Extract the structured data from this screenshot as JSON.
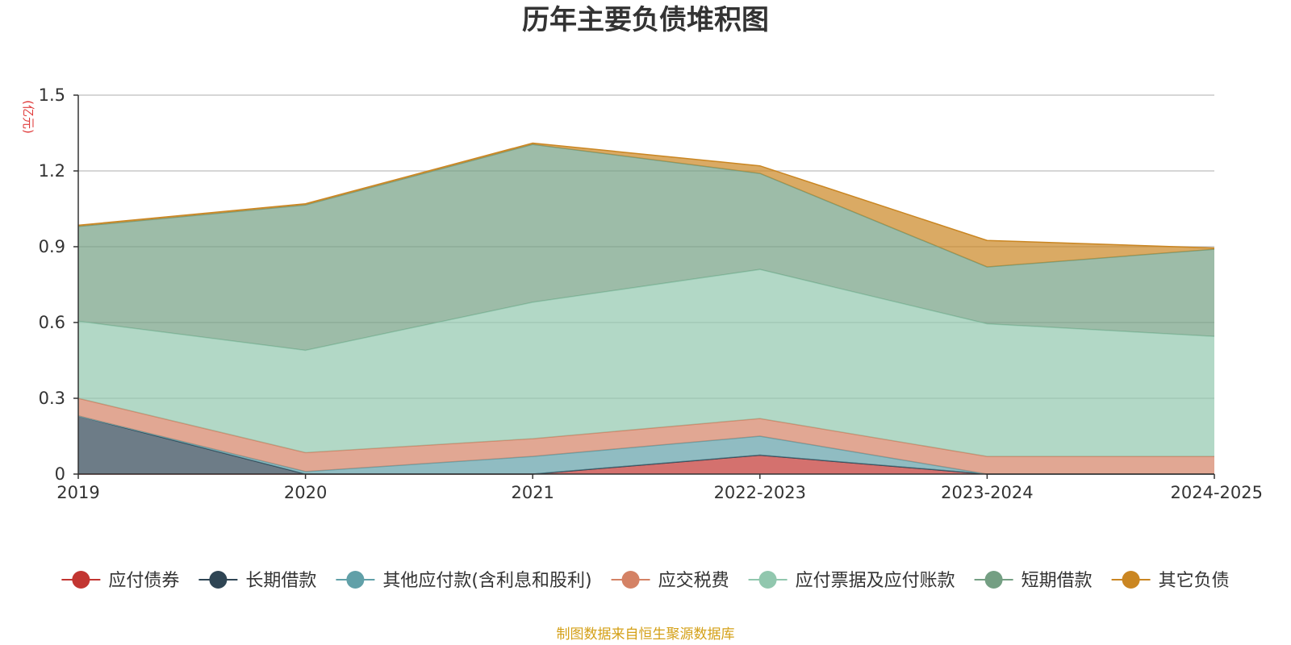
{
  "chart_data": {
    "type": "area",
    "stacked": true,
    "title": "历年主要负债堆积图",
    "unit_label": "(亿元)",
    "categories": [
      "2019",
      "2020",
      "2021",
      "2022-2023",
      "2023-2024",
      "2024-2025"
    ],
    "ylim": [
      0,
      1.5
    ],
    "yticks": [
      0,
      0.3,
      0.6,
      0.9,
      1.2,
      1.5
    ],
    "ytick_labels": [
      "0",
      "0.3",
      "0.6",
      "0.9",
      "1.2",
      "1.5"
    ],
    "grid": true,
    "legend_position": "bottom",
    "series": [
      {
        "name": "应付债券",
        "color": "#c23531",
        "values": [
          0,
          0,
          0,
          0.075,
          0,
          0
        ]
      },
      {
        "name": "长期借款",
        "color": "#2f4554",
        "values": [
          0.23,
          0,
          0,
          0,
          0,
          0
        ]
      },
      {
        "name": "其他应付款(含利息和股利)",
        "color": "#61a0a8",
        "values": [
          0,
          0.01,
          0.07,
          0.075,
          0,
          0
        ]
      },
      {
        "name": "应交税费",
        "color": "#d48265",
        "values": [
          0.07,
          0.075,
          0.07,
          0.07,
          0.07,
          0.07
        ]
      },
      {
        "name": "应付票据及应付账款",
        "color": "#91c7ae",
        "values": [
          0.305,
          0.405,
          0.54,
          0.59,
          0.525,
          0.475
        ]
      },
      {
        "name": "短期借款",
        "color": "#749f83",
        "values": [
          0.375,
          0.575,
          0.625,
          0.38,
          0.225,
          0.345
        ]
      },
      {
        "name": "其它负债",
        "color": "#ca8622",
        "values": [
          0.005,
          0.005,
          0.005,
          0.03,
          0.105,
          0.005
        ]
      }
    ]
  },
  "footer": {
    "source_text": "制图数据来自恒生聚源数据库"
  }
}
